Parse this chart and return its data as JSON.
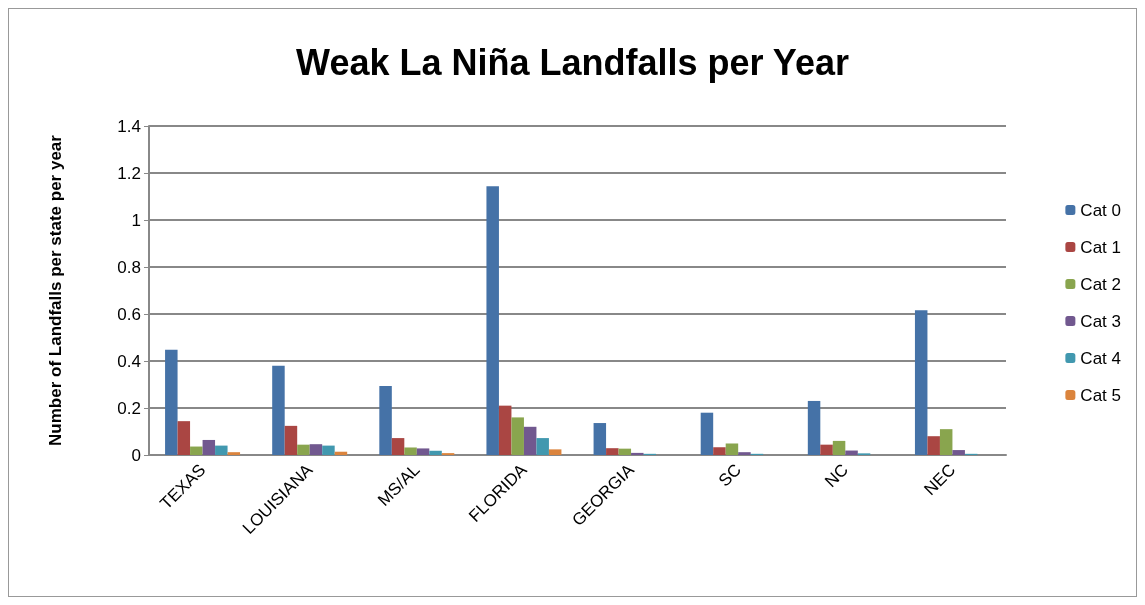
{
  "chart_data": {
    "type": "bar",
    "title": "Weak La Niña Landfalls per Year",
    "ylabel": "Number of Landfalls per state per year",
    "categories": [
      "TEXAS",
      "LOUISIANA",
      "MS/AL",
      "FLORIDA",
      "GEORGIA",
      "SC",
      "NC",
      "NEC"
    ],
    "series": [
      {
        "name": "Cat 0",
        "color": "#4572a7",
        "values": [
          0.448,
          0.38,
          0.294,
          1.144,
          0.136,
          0.18,
          0.23,
          0.616
        ]
      },
      {
        "name": "Cat 1",
        "color": "#aa4643",
        "values": [
          0.144,
          0.124,
          0.072,
          0.21,
          0.029,
          0.033,
          0.044,
          0.08
        ]
      },
      {
        "name": "Cat 2",
        "color": "#89a54e",
        "values": [
          0.036,
          0.044,
          0.032,
          0.16,
          0.027,
          0.049,
          0.06,
          0.11
        ]
      },
      {
        "name": "Cat 3",
        "color": "#71588f",
        "values": [
          0.064,
          0.046,
          0.028,
          0.12,
          0.009,
          0.012,
          0.019,
          0.021
        ]
      },
      {
        "name": "Cat 4",
        "color": "#4198af",
        "values": [
          0.04,
          0.04,
          0.018,
          0.072,
          0.005,
          0.005,
          0.007,
          0.005
        ]
      },
      {
        "name": "Cat 5",
        "color": "#db843d",
        "values": [
          0.012,
          0.014,
          0.008,
          0.024,
          0,
          0,
          0,
          0
        ]
      }
    ],
    "ylim": [
      0,
      1.4
    ],
    "yticks": [
      0,
      0.2,
      0.4,
      0.6,
      0.8,
      1,
      1.2,
      1.4
    ],
    "grid": "y",
    "legend": "right"
  }
}
